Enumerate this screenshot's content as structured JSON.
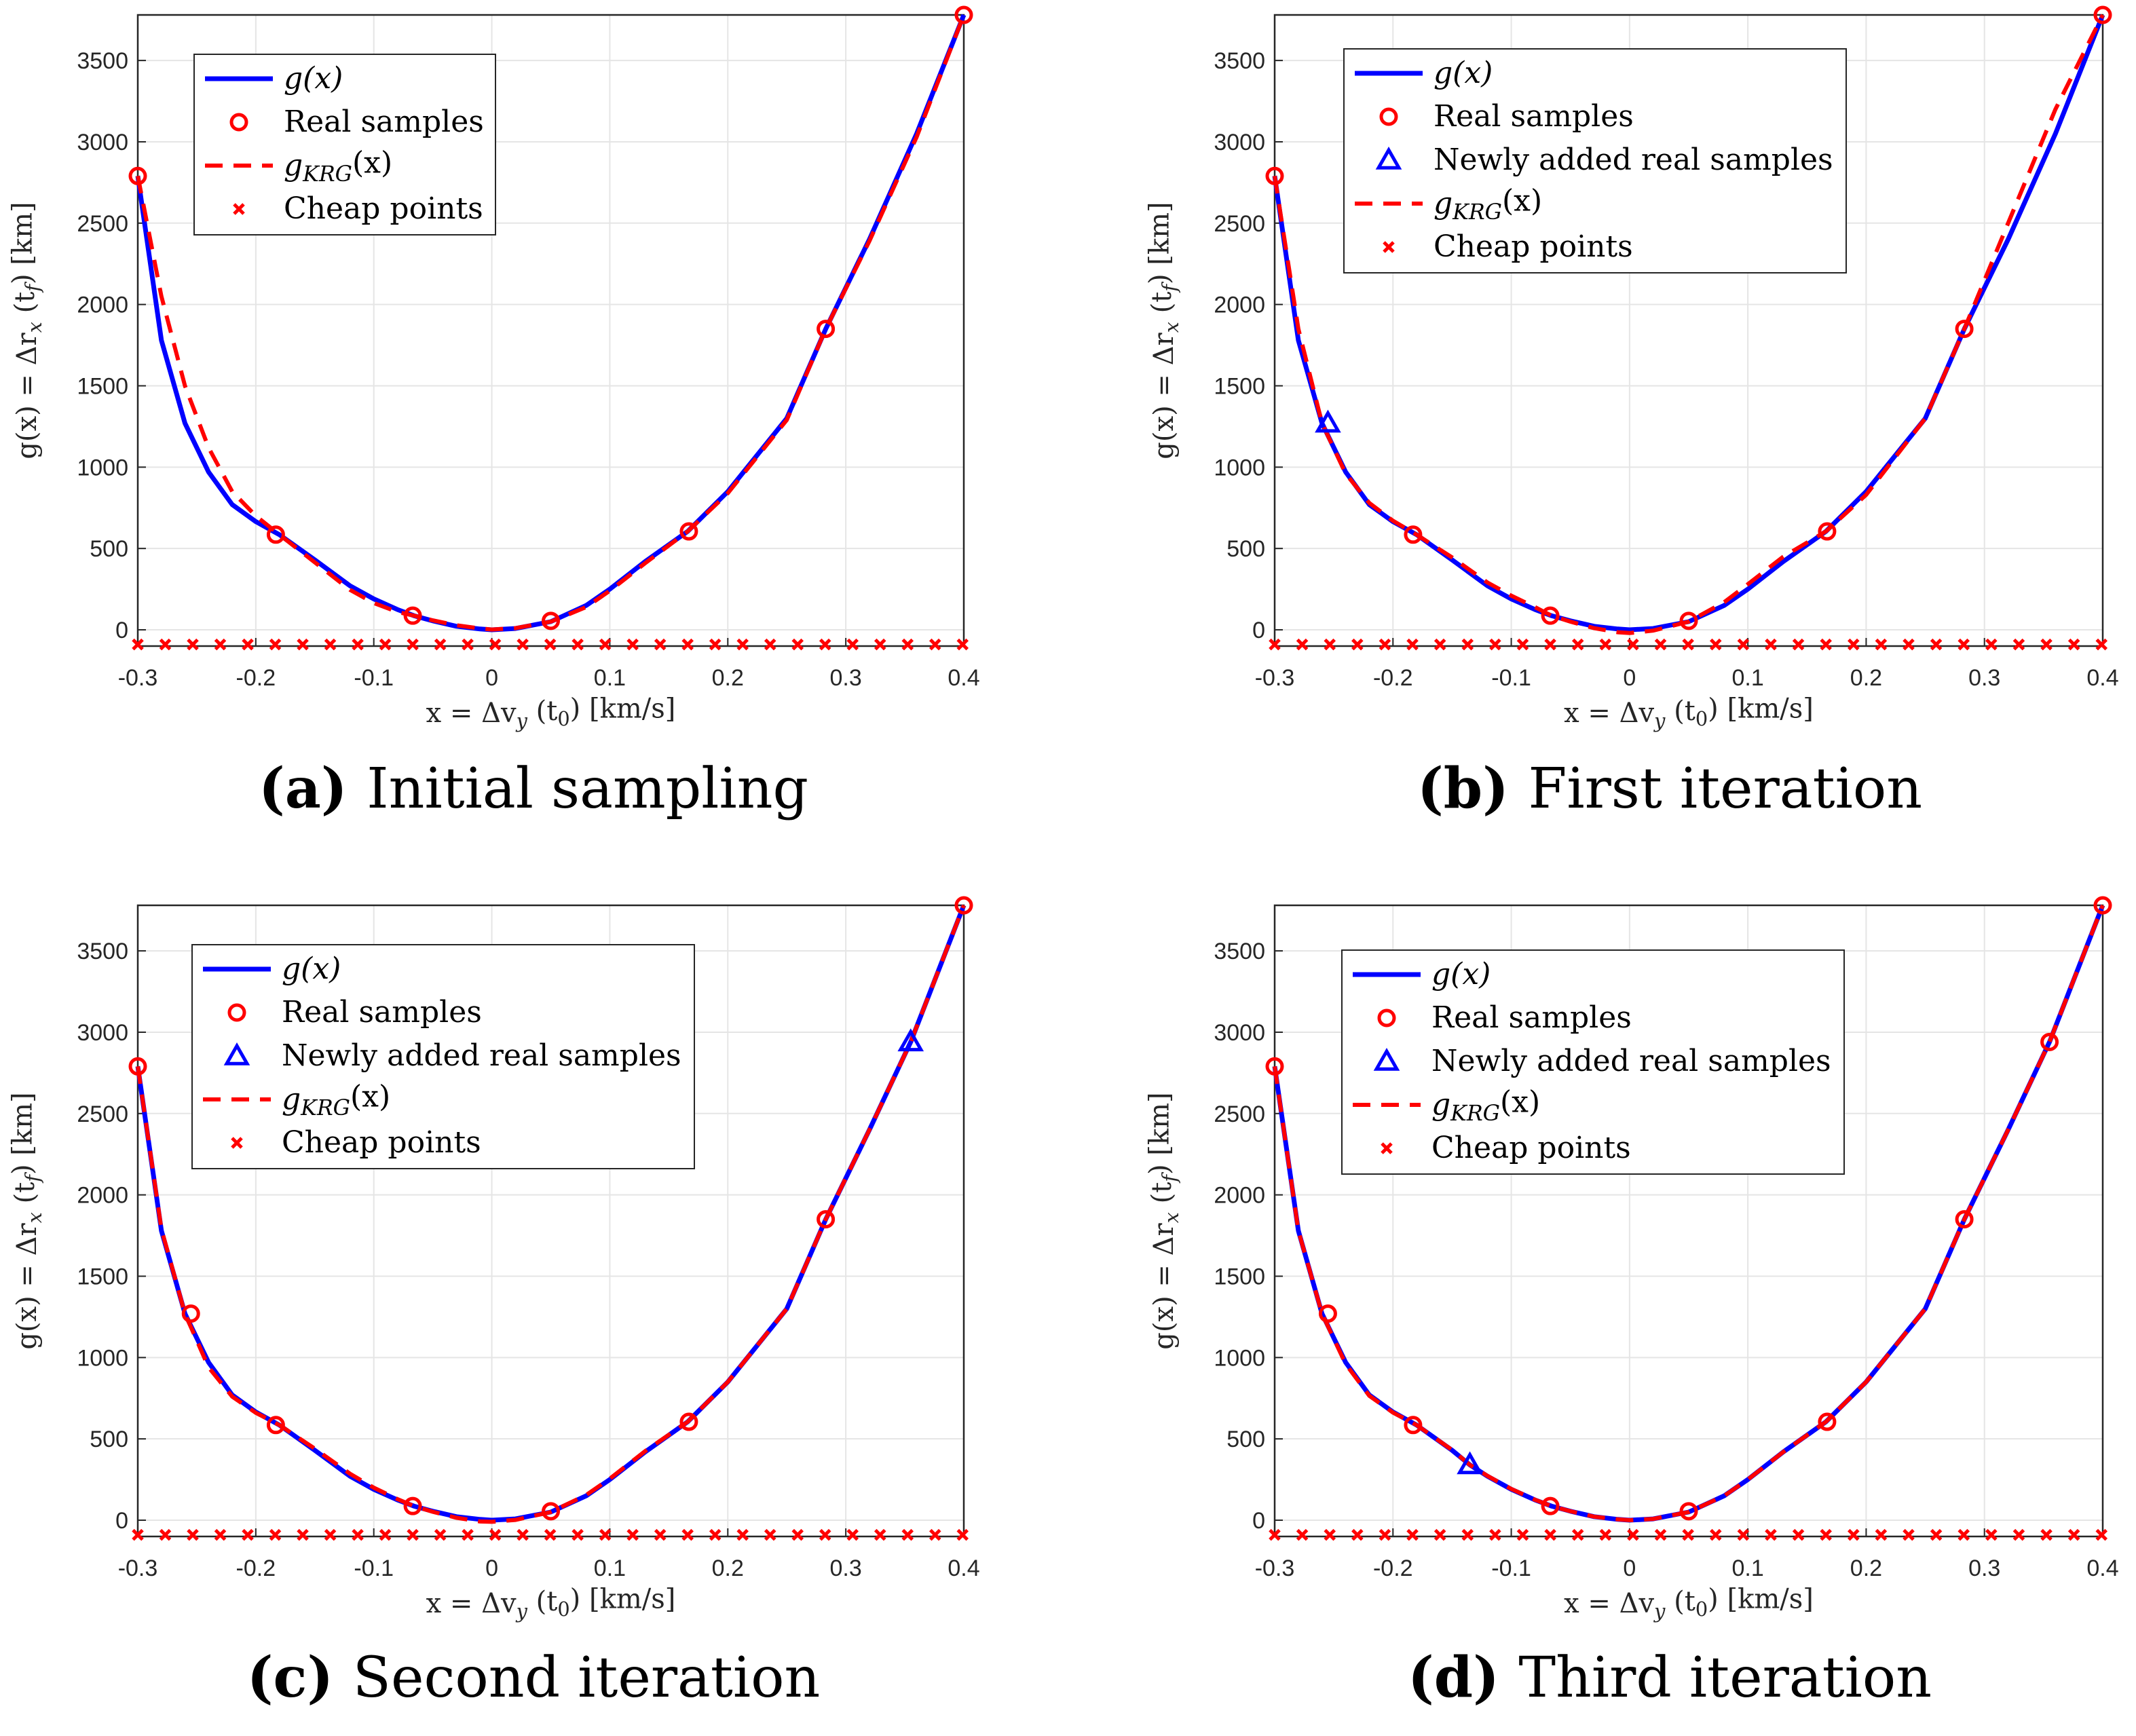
{
  "colors": {
    "true_curve": "#0000ff",
    "krg_curve": "#ff0000",
    "samples": "#ff0000",
    "new_samples": "#0000ff",
    "cheap": "#ff0000",
    "grid": "#e5e5e5"
  },
  "x_label": "x = Δv_y (t_0) [km/s]",
  "y_label": "g(x) = Δr_x (t_f) [km]",
  "x_ticks": [
    "-0.3",
    "-0.2",
    "-0.1",
    "0",
    "0.1",
    "0.2",
    "0.3",
    "0.4"
  ],
  "y_ticks": [
    "0",
    "500",
    "1000",
    "1500",
    "2000",
    "2500",
    "3000",
    "3500"
  ],
  "legend": {
    "g": "g(x)",
    "real": "Real samples",
    "new": "Newly added real samples",
    "krg": "g_KRG(x)",
    "cheap": "Cheap points"
  },
  "captions": [
    {
      "letter": "(a)",
      "text": "Initial sampling"
    },
    {
      "letter": "(b)",
      "text": "First iteration"
    },
    {
      "letter": "(c)",
      "text": "Second iteration"
    },
    {
      "letter": "(d)",
      "text": "Third iteration"
    }
  ],
  "chart_data": [
    {
      "type": "line",
      "panel": "a",
      "title": "Initial sampling",
      "xlabel": "x = Δv_y (t_0) [km/s]",
      "ylabel": "g(x) = Δr_x (t_f) [km]",
      "xlim": [
        -0.3,
        0.4
      ],
      "ylim": [
        -100,
        3780
      ],
      "grid": true,
      "legend_position": "top-left",
      "legend_entries": [
        "g(x)",
        "Real samples",
        "g_KRG(x)",
        "Cheap points"
      ],
      "true_curve": {
        "x": [
          -0.3,
          -0.28,
          -0.26,
          -0.24,
          -0.22,
          -0.2,
          -0.18,
          -0.15,
          -0.12,
          -0.1,
          -0.08,
          -0.066,
          -0.05,
          -0.03,
          -0.01,
          0,
          0.02,
          0.05,
          0.08,
          0.1,
          0.13,
          0.166,
          0.2,
          0.25,
          0.283,
          0.32,
          0.36,
          0.4
        ],
        "y": [
          2790,
          1780,
          1270,
          970,
          770,
          665,
          585,
          430,
          270,
          190,
          125,
          87,
          55,
          22,
          5,
          0,
          8,
          50,
          150,
          250,
          420,
          605,
          850,
          1300,
          1850,
          2400,
          3050,
          3780
        ]
      },
      "krg_curve": {
        "x": [
          -0.3,
          -0.28,
          -0.26,
          -0.24,
          -0.22,
          -0.2,
          -0.18,
          -0.15,
          -0.12,
          -0.1,
          -0.08,
          -0.066,
          -0.05,
          -0.03,
          -0.01,
          0,
          0.02,
          0.05,
          0.08,
          0.1,
          0.13,
          0.166,
          0.2,
          0.25,
          0.283,
          0.32,
          0.36,
          0.4
        ],
        "y": [
          2790,
          2050,
          1500,
          1120,
          850,
          700,
          585,
          415,
          245,
          165,
          110,
          87,
          58,
          28,
          8,
          2,
          10,
          50,
          140,
          240,
          410,
          605,
          840,
          1290,
          1850,
          2390,
          3030,
          3780
        ]
      },
      "real_samples": {
        "x": [
          -0.3,
          -0.183,
          -0.067,
          0.05,
          0.167,
          0.283,
          0.4
        ],
        "y": [
          2790,
          585,
          87,
          55,
          605,
          1850,
          3780
        ]
      },
      "new_samples": {
        "x": [],
        "y": []
      },
      "cheap_points": {
        "x_start": -0.3,
        "x_step": 0.0233,
        "count": 31,
        "y": -90
      }
    },
    {
      "type": "line",
      "panel": "b",
      "title": "First iteration",
      "xlabel": "x = Δv_y (t_0) [km/s]",
      "ylabel": "g(x) = Δr_x (t_f) [km]",
      "xlim": [
        -0.3,
        0.4
      ],
      "ylim": [
        -100,
        3780
      ],
      "grid": true,
      "legend_position": "top-left",
      "legend_entries": [
        "g(x)",
        "Real samples",
        "Newly added real samples",
        "g_KRG(x)",
        "Cheap points"
      ],
      "true_curve": {
        "x": [
          -0.3,
          -0.28,
          -0.26,
          -0.24,
          -0.22,
          -0.2,
          -0.18,
          -0.15,
          -0.12,
          -0.1,
          -0.08,
          -0.066,
          -0.05,
          -0.03,
          -0.01,
          0,
          0.02,
          0.05,
          0.08,
          0.1,
          0.13,
          0.166,
          0.2,
          0.25,
          0.283,
          0.32,
          0.36,
          0.4
        ],
        "y": [
          2790,
          1780,
          1270,
          970,
          770,
          665,
          585,
          430,
          270,
          190,
          125,
          87,
          55,
          22,
          5,
          0,
          8,
          50,
          150,
          250,
          420,
          605,
          850,
          1300,
          1850,
          2400,
          3050,
          3780
        ]
      },
      "krg_curve": {
        "x": [
          -0.3,
          -0.28,
          -0.26,
          -0.24,
          -0.22,
          -0.2,
          -0.18,
          -0.15,
          -0.12,
          -0.1,
          -0.08,
          -0.066,
          -0.05,
          -0.03,
          -0.01,
          0,
          0.02,
          0.05,
          0.08,
          0.1,
          0.13,
          0.166,
          0.2,
          0.25,
          0.283,
          0.32,
          0.36,
          0.4
        ],
        "y": [
          2790,
          1850,
          1270,
          960,
          780,
          670,
          585,
          445,
          290,
          210,
          140,
          87,
          50,
          10,
          -15,
          -20,
          -5,
          50,
          170,
          280,
          450,
          605,
          830,
          1300,
          1850,
          2500,
          3200,
          3780
        ]
      },
      "real_samples": {
        "x": [
          -0.3,
          -0.183,
          -0.067,
          0.05,
          0.167,
          0.283,
          0.4
        ],
        "y": [
          2790,
          585,
          87,
          55,
          605,
          1850,
          3780
        ]
      },
      "new_samples": {
        "x": [
          -0.255
        ],
        "y": [
          1270
        ]
      },
      "cheap_points": {
        "x_start": -0.3,
        "x_step": 0.0233,
        "count": 31,
        "y": -90
      }
    },
    {
      "type": "line",
      "panel": "c",
      "title": "Second iteration",
      "xlabel": "x = Δv_y (t_0) [km/s]",
      "ylabel": "g(x) = Δr_x (t_f) [km]",
      "xlim": [
        -0.3,
        0.4
      ],
      "ylim": [
        -100,
        3780
      ],
      "grid": true,
      "legend_position": "top-left",
      "legend_entries": [
        "g(x)",
        "Real samples",
        "Newly added real samples",
        "g_KRG(x)",
        "Cheap points"
      ],
      "true_curve": {
        "x": [
          -0.3,
          -0.28,
          -0.26,
          -0.24,
          -0.22,
          -0.2,
          -0.18,
          -0.15,
          -0.12,
          -0.1,
          -0.08,
          -0.066,
          -0.05,
          -0.03,
          -0.01,
          0,
          0.02,
          0.05,
          0.08,
          0.1,
          0.13,
          0.166,
          0.2,
          0.25,
          0.283,
          0.32,
          0.355,
          0.4
        ],
        "y": [
          2790,
          1780,
          1270,
          970,
          770,
          665,
          585,
          430,
          270,
          190,
          125,
          87,
          55,
          22,
          5,
          0,
          8,
          50,
          150,
          250,
          420,
          605,
          850,
          1300,
          1850,
          2400,
          2940,
          3780
        ]
      },
      "krg_curve": {
        "x": [
          -0.3,
          -0.28,
          -0.26,
          -0.24,
          -0.22,
          -0.2,
          -0.18,
          -0.15,
          -0.12,
          -0.1,
          -0.08,
          -0.066,
          -0.05,
          -0.03,
          -0.01,
          0,
          0.02,
          0.05,
          0.08,
          0.1,
          0.13,
          0.166,
          0.2,
          0.25,
          0.283,
          0.32,
          0.355,
          0.4
        ],
        "y": [
          2790,
          1790,
          1270,
          940,
          760,
          660,
          585,
          440,
          285,
          200,
          130,
          87,
          52,
          15,
          -8,
          -10,
          2,
          50,
          155,
          255,
          425,
          605,
          850,
          1300,
          1850,
          2400,
          2940,
          3780
        ]
      },
      "real_samples": {
        "x": [
          -0.3,
          -0.255,
          -0.183,
          -0.067,
          0.05,
          0.167,
          0.283,
          0.4
        ],
        "y": [
          2790,
          1270,
          585,
          87,
          55,
          605,
          1850,
          3780
        ]
      },
      "new_samples": {
        "x": [
          0.355
        ],
        "y": [
          2940
        ]
      },
      "cheap_points": {
        "x_start": -0.3,
        "x_step": 0.0233,
        "count": 31,
        "y": -90
      }
    },
    {
      "type": "line",
      "panel": "d",
      "title": "Third iteration",
      "xlabel": "x = Δv_y (t_0) [km/s]",
      "ylabel": "g(x) = Δr_x (t_f) [km]",
      "xlim": [
        -0.3,
        0.4
      ],
      "ylim": [
        -100,
        3780
      ],
      "grid": true,
      "legend_position": "top-left",
      "legend_entries": [
        "g(x)",
        "Real samples",
        "Newly added real samples",
        "g_KRG(x)",
        "Cheap points"
      ],
      "true_curve": {
        "x": [
          -0.3,
          -0.28,
          -0.26,
          -0.24,
          -0.22,
          -0.2,
          -0.18,
          -0.15,
          -0.135,
          -0.12,
          -0.1,
          -0.08,
          -0.066,
          -0.05,
          -0.03,
          -0.01,
          0,
          0.02,
          0.05,
          0.08,
          0.1,
          0.13,
          0.166,
          0.2,
          0.25,
          0.283,
          0.32,
          0.355,
          0.4
        ],
        "y": [
          2790,
          1780,
          1270,
          970,
          770,
          665,
          585,
          430,
          340,
          270,
          190,
          125,
          87,
          55,
          22,
          5,
          0,
          8,
          50,
          150,
          250,
          420,
          605,
          850,
          1300,
          1850,
          2400,
          2940,
          3780
        ]
      },
      "krg_curve": {
        "x": [
          -0.3,
          -0.28,
          -0.26,
          -0.24,
          -0.22,
          -0.2,
          -0.18,
          -0.15,
          -0.135,
          -0.12,
          -0.1,
          -0.08,
          -0.066,
          -0.05,
          -0.03,
          -0.01,
          0,
          0.02,
          0.05,
          0.08,
          0.1,
          0.13,
          0.166,
          0.2,
          0.25,
          0.283,
          0.32,
          0.355,
          0.4
        ],
        "y": [
          2790,
          1780,
          1270,
          960,
          765,
          662,
          585,
          432,
          340,
          272,
          192,
          126,
          87,
          55,
          22,
          5,
          0,
          8,
          50,
          150,
          250,
          420,
          605,
          850,
          1300,
          1850,
          2400,
          2940,
          3780
        ]
      },
      "real_samples": {
        "x": [
          -0.3,
          -0.255,
          -0.183,
          -0.067,
          0.05,
          0.167,
          0.283,
          0.355,
          0.4
        ],
        "y": [
          2790,
          1270,
          585,
          87,
          55,
          605,
          1850,
          2940,
          3780
        ]
      },
      "new_samples": {
        "x": [
          -0.135
        ],
        "y": [
          340
        ]
      },
      "cheap_points": {
        "x_start": -0.3,
        "x_step": 0.0233,
        "count": 31,
        "y": -90
      }
    }
  ]
}
